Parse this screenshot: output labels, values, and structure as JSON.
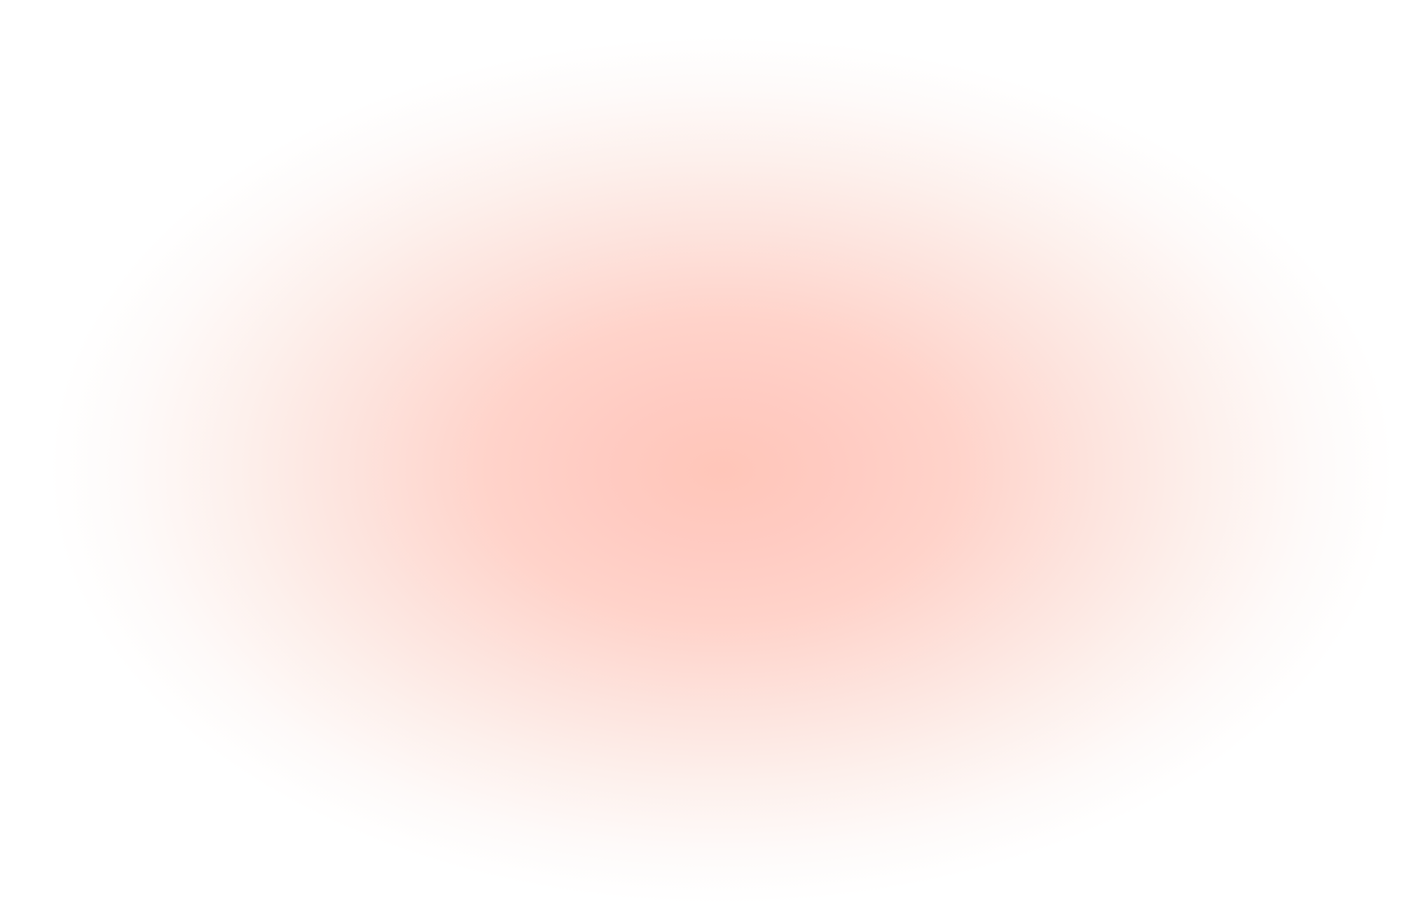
{
  "background": {
    "base_color": "#ffffff",
    "glow_center_color": "#ffc6b9",
    "glow_mid_color": "#fde3dd"
  }
}
